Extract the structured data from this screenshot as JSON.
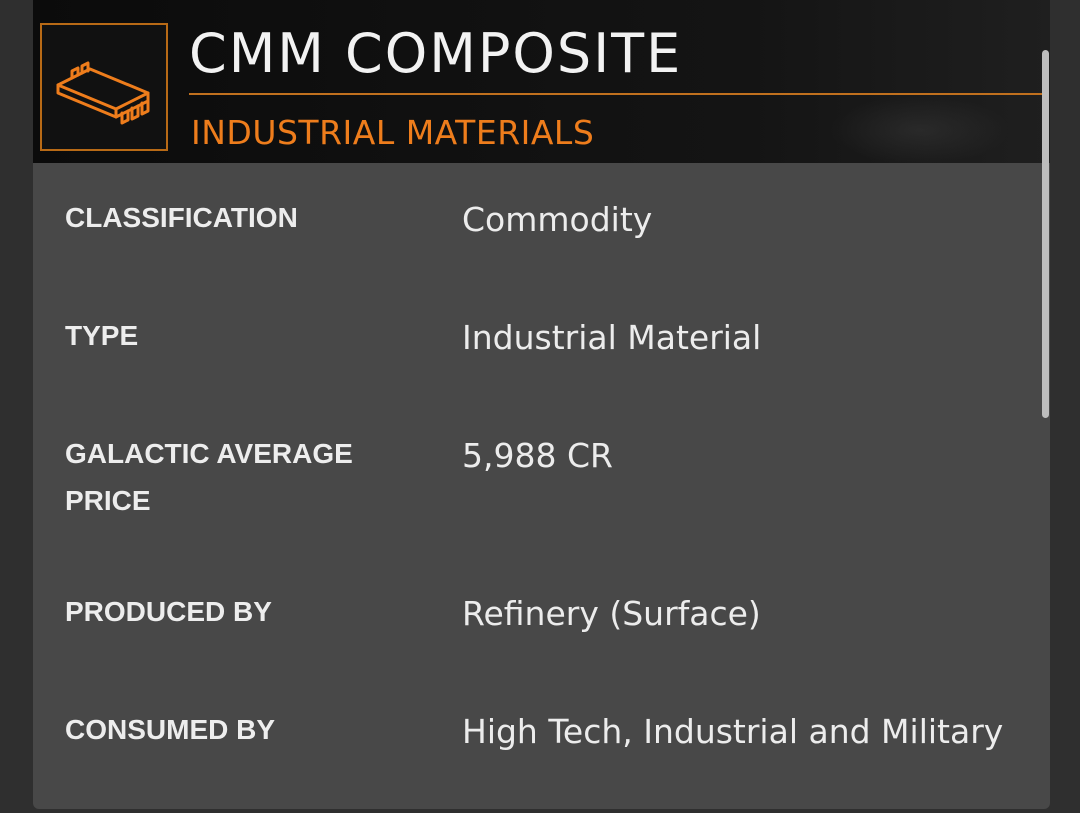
{
  "header": {
    "title": "CMM COMPOSITE",
    "subtitle": "INDUSTRIAL MATERIALS",
    "icon": "microchip-icon",
    "accent_color": "#ee7d1c"
  },
  "details": [
    {
      "label": "CLASSIFICATION",
      "value": "Commodity"
    },
    {
      "label": "TYPE",
      "value": "Industrial Material"
    },
    {
      "label": "GALACTIC AVERAGE PRICE",
      "value": "5,988 CR"
    },
    {
      "label": "PRODUCED BY",
      "value": "Refinery (Surface)"
    },
    {
      "label": "CONSUMED BY",
      "value": "High Tech, Industrial and Military"
    }
  ]
}
